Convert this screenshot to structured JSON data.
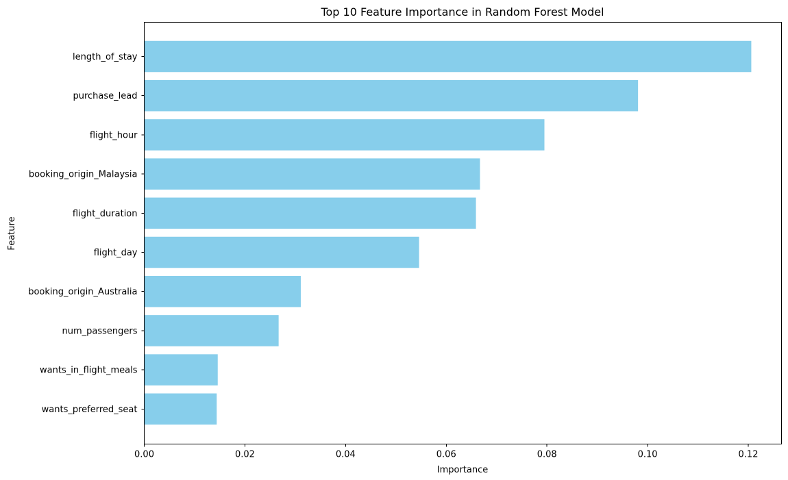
{
  "chart_data": {
    "type": "bar",
    "orientation": "horizontal",
    "title": "Top 10 Feature Importance in Random Forest Model",
    "xlabel": "Importance",
    "ylabel": "Feature",
    "categories": [
      "length_of_stay",
      "purchase_lead",
      "flight_hour",
      "booking_origin_Malaysia",
      "flight_duration",
      "flight_day",
      "booking_origin_Australia",
      "num_passengers",
      "wants_in_flight_meals",
      "wants_preferred_seat"
    ],
    "values": [
      0.1206,
      0.0981,
      0.0795,
      0.0667,
      0.0659,
      0.0546,
      0.0311,
      0.0267,
      0.0146,
      0.0144
    ],
    "xlim": [
      0,
      0.1266
    ],
    "xticks": [
      "0.00",
      "0.02",
      "0.04",
      "0.06",
      "0.08",
      "0.10",
      "0.12"
    ],
    "bar_color": "#87ceeb",
    "grid": false,
    "legend": "none"
  }
}
